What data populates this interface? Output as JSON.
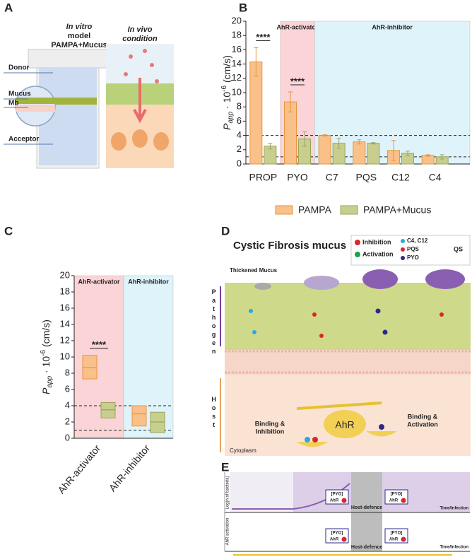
{
  "panel_labels": [
    "A",
    "B",
    "C",
    "D",
    "E"
  ],
  "panel_a": {
    "in_vitro": [
      "In vitro",
      "model",
      "PAMPA+Mucus"
    ],
    "in_vivo": [
      "In vivo",
      "condition"
    ],
    "labels": [
      "Donor",
      "Mucus",
      "Mb",
      "Acceptor"
    ]
  },
  "chart_data": [
    {
      "type": "bar",
      "y_label": {
        "main": "P",
        "sub": "app",
        "mid": " · 10",
        "sup": "-6",
        "unit": " (cm/s)"
      },
      "categories": [
        "PROP",
        "PYO",
        "C7",
        "PQS",
        "C12",
        "C4"
      ],
      "series": [
        {
          "name": "PAMPA",
          "color": "#f9c089",
          "stroke": "#e8953f",
          "values": [
            14.3,
            8.7,
            4.0,
            3.1,
            1.9,
            1.2
          ],
          "errors": [
            2.0,
            1.4,
            0.1,
            0.3,
            1.4,
            0.1
          ]
        },
        {
          "name": "PAMPA+Mucus",
          "color": "#c8cf8e",
          "stroke": "#9aa35a",
          "values": [
            2.5,
            3.5,
            2.9,
            2.9,
            1.5,
            1.0
          ],
          "errors": [
            0.4,
            1.0,
            0.7,
            0.1,
            0.3,
            0.3
          ]
        }
      ],
      "regions": [
        {
          "label": "AhR-activator",
          "start": "PYO",
          "end": "PYO",
          "color": "#fad4d6",
          "text_color": "#b3202b"
        },
        {
          "label": "AhR-inhibitor",
          "start": "C7",
          "end": "C4",
          "color": "#dff3fb",
          "text_color": "#1f3f9e"
        }
      ],
      "annotations": [
        {
          "text": "****",
          "category": "PROP"
        },
        {
          "text": "****",
          "category": "PYO"
        }
      ],
      "hlines": [
        4,
        1
      ],
      "ylim": [
        0,
        20
      ],
      "yticks": [
        0,
        2,
        4,
        6,
        8,
        10,
        12,
        14,
        16,
        18,
        20
      ],
      "grid": false,
      "legend": "bottom"
    },
    {
      "type": "box",
      "y_label": {
        "main": "P",
        "sub": "app",
        "mid": " · 10",
        "sup": "-6",
        "unit": " (cm/s)"
      },
      "categories": [
        "AhR-activator",
        "AhR-inhibitor"
      ],
      "series": [
        {
          "name": "PAMPA",
          "color": "#f9c089",
          "stroke": "#e8953f",
          "low": [
            7.3,
            1.5
          ],
          "high": [
            10.2,
            4.0
          ],
          "median": [
            8.7,
            3.0
          ]
        },
        {
          "name": "PAMPA+Mucus",
          "color": "#c8cf8e",
          "stroke": "#9aa35a",
          "low": [
            2.5,
            0.7
          ],
          "high": [
            4.4,
            3.2
          ],
          "median": [
            3.5,
            2.0
          ]
        }
      ],
      "regions": [
        {
          "label": "AhR-activator",
          "start": "AhR-activator",
          "end": "AhR-activator",
          "color": "#fad4d6",
          "text_color": "#b3202b"
        },
        {
          "label": "AhR-inhibitor",
          "start": "AhR-inhibitor",
          "end": "AhR-inhibitor",
          "color": "#dff3fb",
          "text_color": "#1f3f9e"
        }
      ],
      "annotations": [
        {
          "text": "****",
          "category": "AhR-activator"
        }
      ],
      "hlines": [
        4,
        1
      ],
      "ylim": [
        0,
        20
      ],
      "yticks": [
        0,
        2,
        4,
        6,
        8,
        10,
        12,
        14,
        16,
        18,
        20
      ],
      "grid": false
    }
  ],
  "panel_d": {
    "title": "Cystic Fibrosis mucus",
    "legend": {
      "inhibition": "Inhibition",
      "activation": "Activation",
      "c4c12": "C4, C12",
      "pqs": "PQS",
      "pyo": "PYO",
      "qs": "QS"
    },
    "thickened": "Thickened Mucus",
    "pathogen": "Pathogen",
    "host": "Host",
    "binding_inhibition": [
      "Binding &",
      "Inhibition"
    ],
    "binding_activation": [
      "Binding &",
      "Activation"
    ],
    "ahr": "AhR",
    "cytoplasm": "Cytoplasm"
  },
  "panel_e": {
    "top_axis": "Log(n of bacteria)",
    "bottom_axis": "AhR activation",
    "host_defence": "Host-defence",
    "pyo": "[PYO]",
    "ahr": "AhR",
    "time": "Time/Infection"
  }
}
